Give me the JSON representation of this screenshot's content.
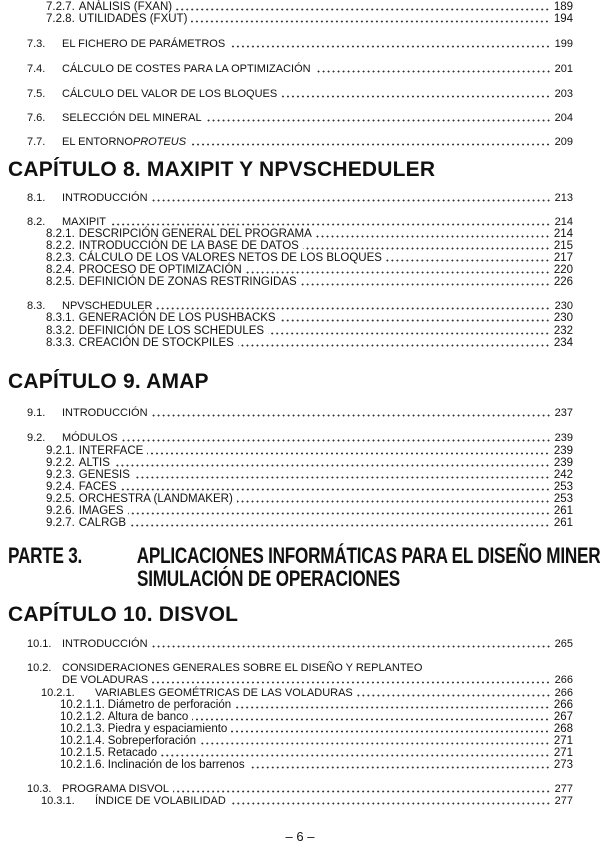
{
  "entries": [
    {
      "type": "entry",
      "level": "l3",
      "num": "7.2.7.",
      "title": "ANÁLISIS (FXAN)",
      "page": "189"
    },
    {
      "type": "entry",
      "level": "l3",
      "num": "7.2.8.",
      "title": "UTILIDADES (FXUT)",
      "page": "194"
    },
    {
      "type": "entry",
      "level": "l2",
      "num": "7.3.",
      "title": "EL FICHERO DE PARÁMETROS",
      "page": "199"
    },
    {
      "type": "entry",
      "level": "l2",
      "num": "7.4.",
      "title": "CÁLCULO DE COSTES PARA LA OPTIMIZACIÓN",
      "page": "201"
    },
    {
      "type": "entry",
      "level": "l2",
      "num": "7.5.",
      "title": "CÁLCULO DEL VALOR DE LOS BLOQUES",
      "page": "203"
    },
    {
      "type": "entry",
      "level": "l2",
      "num": "7.6.",
      "title": "SELECCIÓN DEL MINERAL",
      "page": "204"
    },
    {
      "type": "entry",
      "level": "l2",
      "num": "7.7.",
      "title": "EL ENTORNO ",
      "title_italic": "PROTEUS",
      "page": "209"
    },
    {
      "type": "chapter",
      "title": "CAPÍTULO 8. MAXIPIT Y NPVSCHEDULER"
    },
    {
      "type": "entry",
      "level": "l2",
      "num": "8.1.",
      "title": "INTRODUCCIÓN",
      "page": "213"
    },
    {
      "type": "entry",
      "level": "l2",
      "num": "8.2.",
      "title": "MAXIPIT",
      "page": "214"
    },
    {
      "type": "entry",
      "level": "l3",
      "num": "8.2.1.",
      "title": "DESCRIPCIÓN GENERAL DEL PROGRAMA",
      "page": "214"
    },
    {
      "type": "entry",
      "level": "l3",
      "num": "8.2.2.",
      "title": "INTRODUCCIÓN DE LA BASE DE DATOS",
      "page": "215"
    },
    {
      "type": "entry",
      "level": "l3",
      "num": "8.2.3.",
      "title": "CÁLCULO DE LOS VALORES NETOS DE LOS BLOQUES",
      "page": "217"
    },
    {
      "type": "entry",
      "level": "l3",
      "num": "8.2.4.",
      "title": "PROCESO DE OPTIMIZACIÓN",
      "page": "220"
    },
    {
      "type": "entry",
      "level": "l3",
      "num": "8.2.5.",
      "title": "DEFINICIÓN DE ZONAS RESTRINGIDAS",
      "page": "226"
    },
    {
      "type": "entry",
      "level": "l2",
      "num": "8.3.",
      "title": "NPVSCHEDULER",
      "page": "230"
    },
    {
      "type": "entry",
      "level": "l3",
      "num": "8.3.1.",
      "title": "GENERACIÓN DE LOS PUSHBACKS",
      "page": "230"
    },
    {
      "type": "entry",
      "level": "l3",
      "num": "8.3.2.",
      "title": "DEFINICIÓN DE LOS SCHEDULES",
      "page": "232"
    },
    {
      "type": "entry",
      "level": "l3",
      "num": "8.3.3.",
      "title": "CREACIÓN DE STOCKPILES",
      "page": "234"
    },
    {
      "type": "chapter",
      "title": "CAPÍTULO 9. AMAP"
    },
    {
      "type": "entry",
      "level": "l2",
      "num": "9.1.",
      "title": "INTRODUCCIÓN",
      "page": "237"
    },
    {
      "type": "entry",
      "level": "l2",
      "num": "9.2.",
      "title": "MÓDULOS",
      "page": "239"
    },
    {
      "type": "entry",
      "level": "l3",
      "num": "9.2.1.",
      "title": "INTERFACE",
      "page": "239"
    },
    {
      "type": "entry",
      "level": "l3",
      "num": "9.2.2.",
      "title": "ALTIS",
      "page": "239"
    },
    {
      "type": "entry",
      "level": "l3",
      "num": "9.2.3.",
      "title": "GENESIS",
      "page": "242"
    },
    {
      "type": "entry",
      "level": "l3",
      "num": "9.2.4.",
      "title": "FACES",
      "page": "253"
    },
    {
      "type": "entry",
      "level": "l3",
      "num": "9.2.5.",
      "title": "ORCHESTRA (LANDMAKER)",
      "page": "253"
    },
    {
      "type": "entry",
      "level": "l3",
      "num": "9.2.6.",
      "title": "IMAGES",
      "page": "261"
    },
    {
      "type": "entry",
      "level": "l3",
      "num": "9.2.7.",
      "title": "CALRGB",
      "page": "261"
    },
    {
      "type": "part",
      "label": "PARTE 3.",
      "title": "APLICACIONES INFORMÁTICAS PARA EL DISEÑO MINERO Y",
      "title_cont": "SIMULACIÓN DE OPERACIONES"
    },
    {
      "type": "chapter",
      "title": "CAPÍTULO 10. DISVOL"
    },
    {
      "type": "entry",
      "level": "l2",
      "num": "10.1.",
      "title": "INTRODUCCIÓN",
      "page": "265"
    },
    {
      "type": "entry",
      "level": "l2",
      "num": "10.2.",
      "title": "CONSIDERACIONES GENERALES SOBRE EL DISEÑO Y REPLANTEO",
      "title_cont": "DE VOLADURAS",
      "page": "266"
    },
    {
      "type": "entry",
      "level": "l3b",
      "num": "10.2.1.",
      "title": "VARIABLES GEOMÉTRICAS DE LAS VOLADURAS",
      "page": "266"
    },
    {
      "type": "entry",
      "level": "l4",
      "num": "10.2.1.1.",
      "title": "Diámetro de perforación",
      "page": "266"
    },
    {
      "type": "entry",
      "level": "l4",
      "num": "10.2.1.2.",
      "title": "Altura de banco",
      "page": "267"
    },
    {
      "type": "entry",
      "level": "l4",
      "num": "10.2.1.3.",
      "title": "Piedra y espaciamiento",
      "page": "268"
    },
    {
      "type": "entry",
      "level": "l4",
      "num": "10.2.1.4.",
      "title": "Sobreperforación",
      "page": "271"
    },
    {
      "type": "entry",
      "level": "l4",
      "num": "10.2.1.5.",
      "title": "Retacado",
      "page": "271"
    },
    {
      "type": "entry",
      "level": "l4",
      "num": "10.2.1.6.",
      "title": "Inclinación de los barrenos",
      "page": "273"
    },
    {
      "type": "entry",
      "level": "l2",
      "num": "10.3.",
      "title": "PROGRAMA DISVOL",
      "page": "277"
    },
    {
      "type": "entry",
      "level": "l3b",
      "num": "10.3.1.",
      "title": "ÍNDICE DE VOLABILIDAD",
      "page": "277"
    }
  ],
  "footer": {
    "page_number": "– 6 –"
  }
}
